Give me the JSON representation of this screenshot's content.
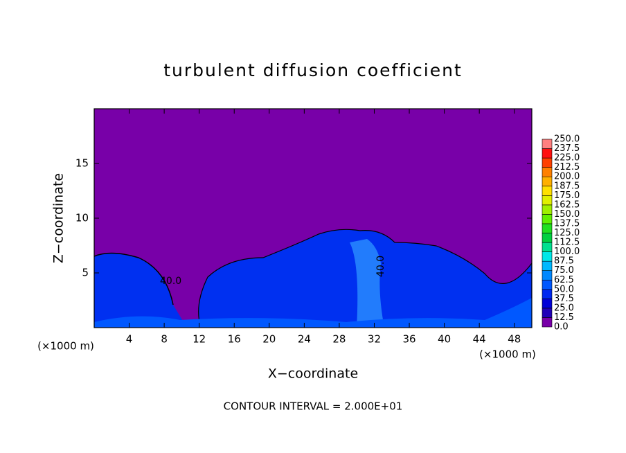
{
  "chart_data": {
    "type": "contour",
    "title": "turbulent diffusion coefficient",
    "xlabel": "X−coordinate",
    "ylabel": "Z−coordinate",
    "x_unit_labels": [
      "(×1000 m)",
      "(×1000 m)"
    ],
    "footer": "CONTOUR INTERVAL = 2.000E+01",
    "annotations": [
      "40.0",
      "40.0"
    ],
    "xlim": [
      0,
      50
    ],
    "ylim": [
      0,
      20
    ],
    "xticks": [
      4,
      8,
      12,
      16,
      20,
      24,
      28,
      32,
      36,
      40,
      44,
      48
    ],
    "yticks": [
      5,
      10,
      15
    ],
    "levels": [
      {
        "value": 0,
        "label": "0.0"
      },
      {
        "value": 12.5,
        "label": "12.5"
      },
      {
        "value": 25,
        "label": "25.0"
      },
      {
        "value": 37.5,
        "label": "37.5"
      },
      {
        "value": 50,
        "label": "50.0"
      },
      {
        "value": 62.5,
        "label": "62.5"
      },
      {
        "value": 75,
        "label": "75.0"
      },
      {
        "value": 87.5,
        "label": "87.5"
      },
      {
        "value": 100,
        "label": "100.0"
      },
      {
        "value": 112.5,
        "label": "112.5"
      },
      {
        "value": 125,
        "label": "125.0"
      },
      {
        "value": 137.5,
        "label": "137.5"
      },
      {
        "value": 150,
        "label": "150.0"
      },
      {
        "value": 162.5,
        "label": "162.5"
      },
      {
        "value": 175,
        "label": "175.0"
      },
      {
        "value": 187.5,
        "label": "187.5"
      },
      {
        "value": 200,
        "label": "200.0"
      },
      {
        "value": 212.5,
        "label": "212.5"
      },
      {
        "value": 225,
        "label": "225.0"
      },
      {
        "value": 237.5,
        "label": "237.5"
      },
      {
        "value": 250,
        "label": "250.0"
      }
    ],
    "colors": [
      "#7800a8",
      "#2000b8",
      "#0000d8",
      "#0028f0",
      "#0058ff",
      "#0088ff",
      "#00b8ff",
      "#00e8e8",
      "#00e090",
      "#00d040",
      "#20e020",
      "#60f000",
      "#a0f000",
      "#e0f000",
      "#ffe000",
      "#ffb000",
      "#ff8000",
      "#ff4000",
      "#ff1010",
      "#ff8080"
    ]
  }
}
